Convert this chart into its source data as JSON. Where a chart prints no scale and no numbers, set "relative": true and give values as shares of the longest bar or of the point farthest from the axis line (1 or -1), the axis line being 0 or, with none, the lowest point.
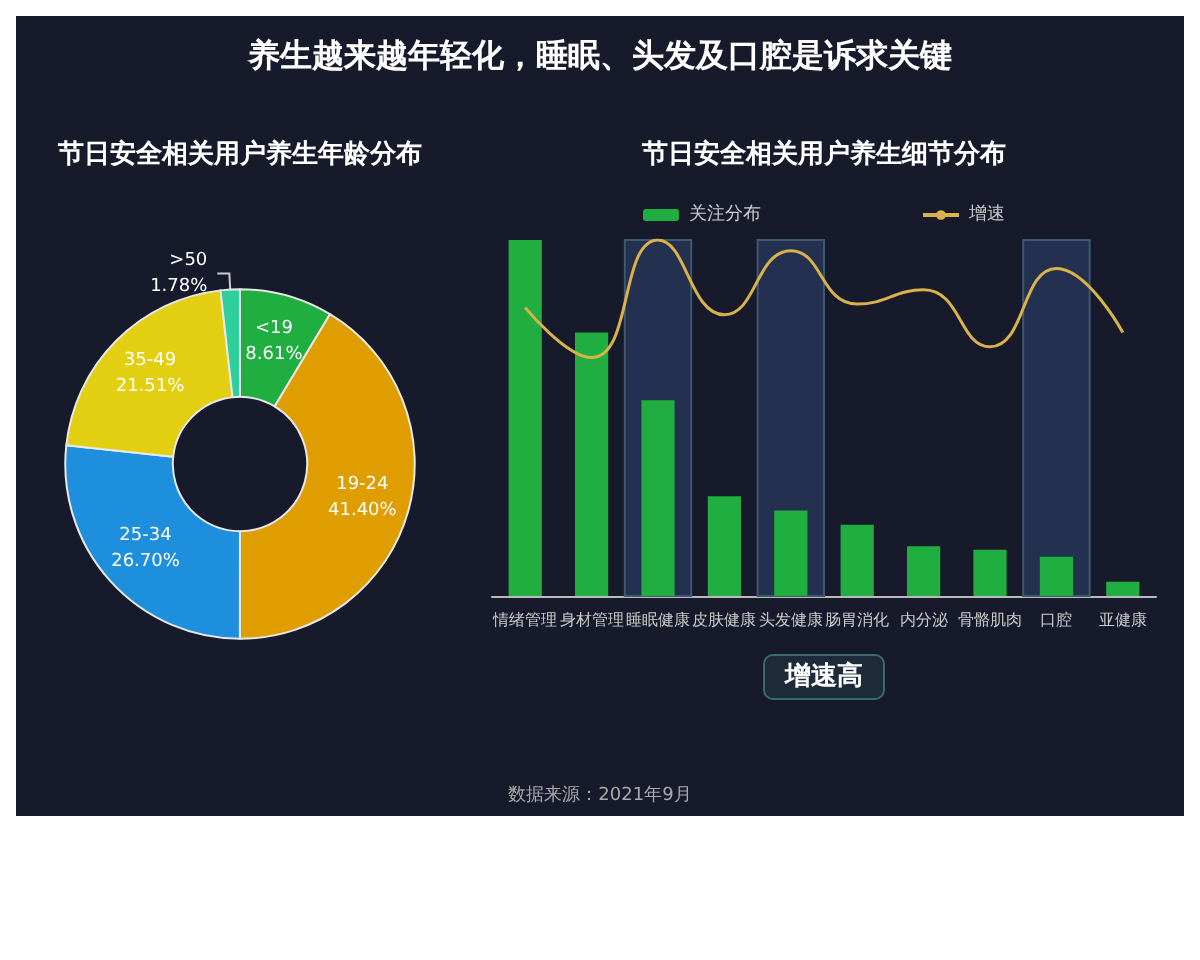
{
  "chart_data": [
    {
      "type": "donut",
      "title": "节日安全相关用户养生年龄分布",
      "categories": [
        "<19",
        "19-24",
        "25-34",
        "35-49",
        ">50"
      ],
      "values": [
        8.61,
        41.4,
        26.7,
        21.51,
        1.78
      ],
      "colors": [
        "#1fae3f",
        "#e09d00",
        "#1d8fdc",
        "#e3cf12",
        "#2ecf9a"
      ],
      "value_labels": [
        "8.61%",
        "41.40%",
        "26.70%",
        "21.51%",
        "1.78%"
      ],
      "annotations": [
        "养生越来越年轻化，睡眠、头发及口腔是诉求关键",
        "数据来源：2021年9月"
      ],
      "legend": false
    },
    {
      "type": "bar",
      "title": "节日安全相关用户养生细节分布",
      "relative": true,
      "categories": [
        "情绪管理",
        "身材管理",
        "睡眠健康",
        "皮肤健康",
        "头发健康",
        "肠胃消化",
        "内分泌",
        "骨骼肌肉",
        "口腔",
        "亚健康"
      ],
      "series": [
        {
          "name": "关注分布",
          "type": "bar",
          "color": "#1fae3f",
          "values": [
            1,
            0.74,
            0.55,
            0.28,
            0.24,
            0.2,
            0.14,
            0.13,
            0.11,
            0.04
          ]
        },
        {
          "name": "增速",
          "type": "line",
          "color": "#d9b24a",
          "values": [
            0.81,
            0.67,
            1,
            0.79,
            0.97,
            0.82,
            0.86,
            0.7,
            0.92,
            0.74
          ]
        }
      ],
      "bands": [
        {
          "axis": "x",
          "from": "睡眠健康",
          "to": "睡眠健康",
          "color": "#24304f"
        },
        {
          "axis": "x",
          "from": "头发健康",
          "to": "头发健康",
          "color": "#24304f"
        },
        {
          "axis": "x",
          "from": "口腔",
          "to": "口腔",
          "color": "#24304f"
        }
      ],
      "annotations": [
        "增速高"
      ],
      "legend": "top",
      "marker": "none"
    }
  ]
}
